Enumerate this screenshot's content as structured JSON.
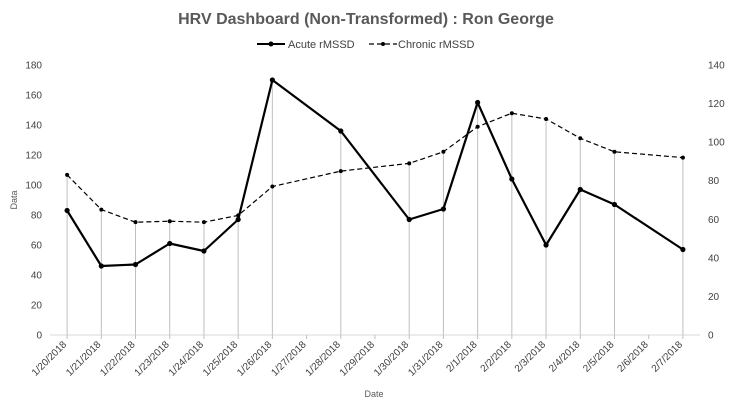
{
  "chart_data": {
    "type": "line",
    "title": "HRV Dashboard (Non-Transformed) : Ron George",
    "xlabel": "Date",
    "ylabel": "Data",
    "categories": [
      "1/20/2018",
      "1/21/2018",
      "1/22/2018",
      "1/23/2018",
      "1/24/2018",
      "1/25/2018",
      "1/26/2018",
      "1/27/2018",
      "1/28/2018",
      "1/29/2018",
      "1/30/2018",
      "1/31/2018",
      "2/1/2018",
      "2/2/2018",
      "2/3/2018",
      "2/4/2018",
      "2/5/2018",
      "2/6/2018",
      "2/7/2018"
    ],
    "ylim": [
      0,
      180
    ],
    "yticks": [
      0,
      20,
      40,
      60,
      80,
      100,
      120,
      140,
      160,
      180
    ],
    "y2lim": [
      0,
      140
    ],
    "y2ticks": [
      0,
      20,
      40,
      60,
      80,
      100,
      120,
      140
    ],
    "legend_position": "top",
    "grid": false,
    "series": [
      {
        "name": "Acute rMSSD",
        "axis": "left",
        "style": "solid",
        "color": "#000000",
        "values": [
          83,
          46,
          47,
          61,
          56,
          77,
          170,
          null,
          136,
          null,
          77,
          84,
          155,
          104,
          60,
          97,
          87,
          null,
          57
        ]
      },
      {
        "name": "Chronic rMSSD",
        "axis": "right",
        "style": "dashed",
        "color": "#000000",
        "values": [
          83,
          65,
          58.5,
          59,
          58.5,
          62,
          77,
          null,
          85,
          null,
          89,
          95,
          108,
          115,
          112,
          102,
          95,
          null,
          92
        ]
      }
    ]
  }
}
